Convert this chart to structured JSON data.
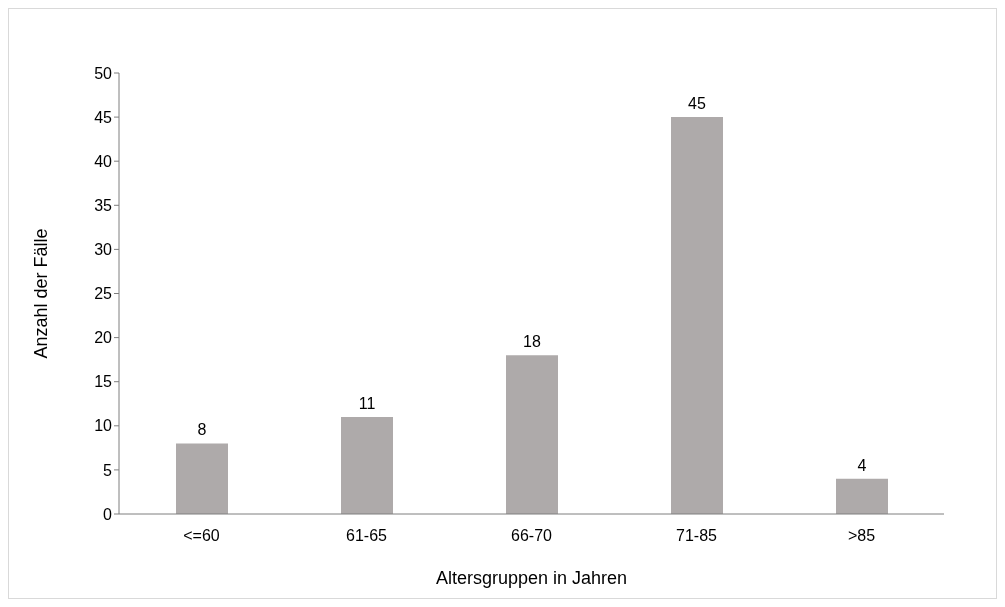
{
  "chart_data": {
    "type": "bar",
    "xlabel": "Altersgruppen in Jahren",
    "ylabel": "Anzahl der Fälle",
    "categories": [
      "<=60",
      "61-65",
      "66-70",
      "71-85",
      ">85"
    ],
    "values": [
      8,
      11,
      18,
      45,
      4
    ],
    "color": "#aeaaaa",
    "ylim": [
      0,
      50
    ],
    "yticks": [
      0,
      5,
      10,
      15,
      20,
      25,
      30,
      35,
      40,
      45,
      50
    ],
    "grid": false,
    "data_labels": true
  }
}
